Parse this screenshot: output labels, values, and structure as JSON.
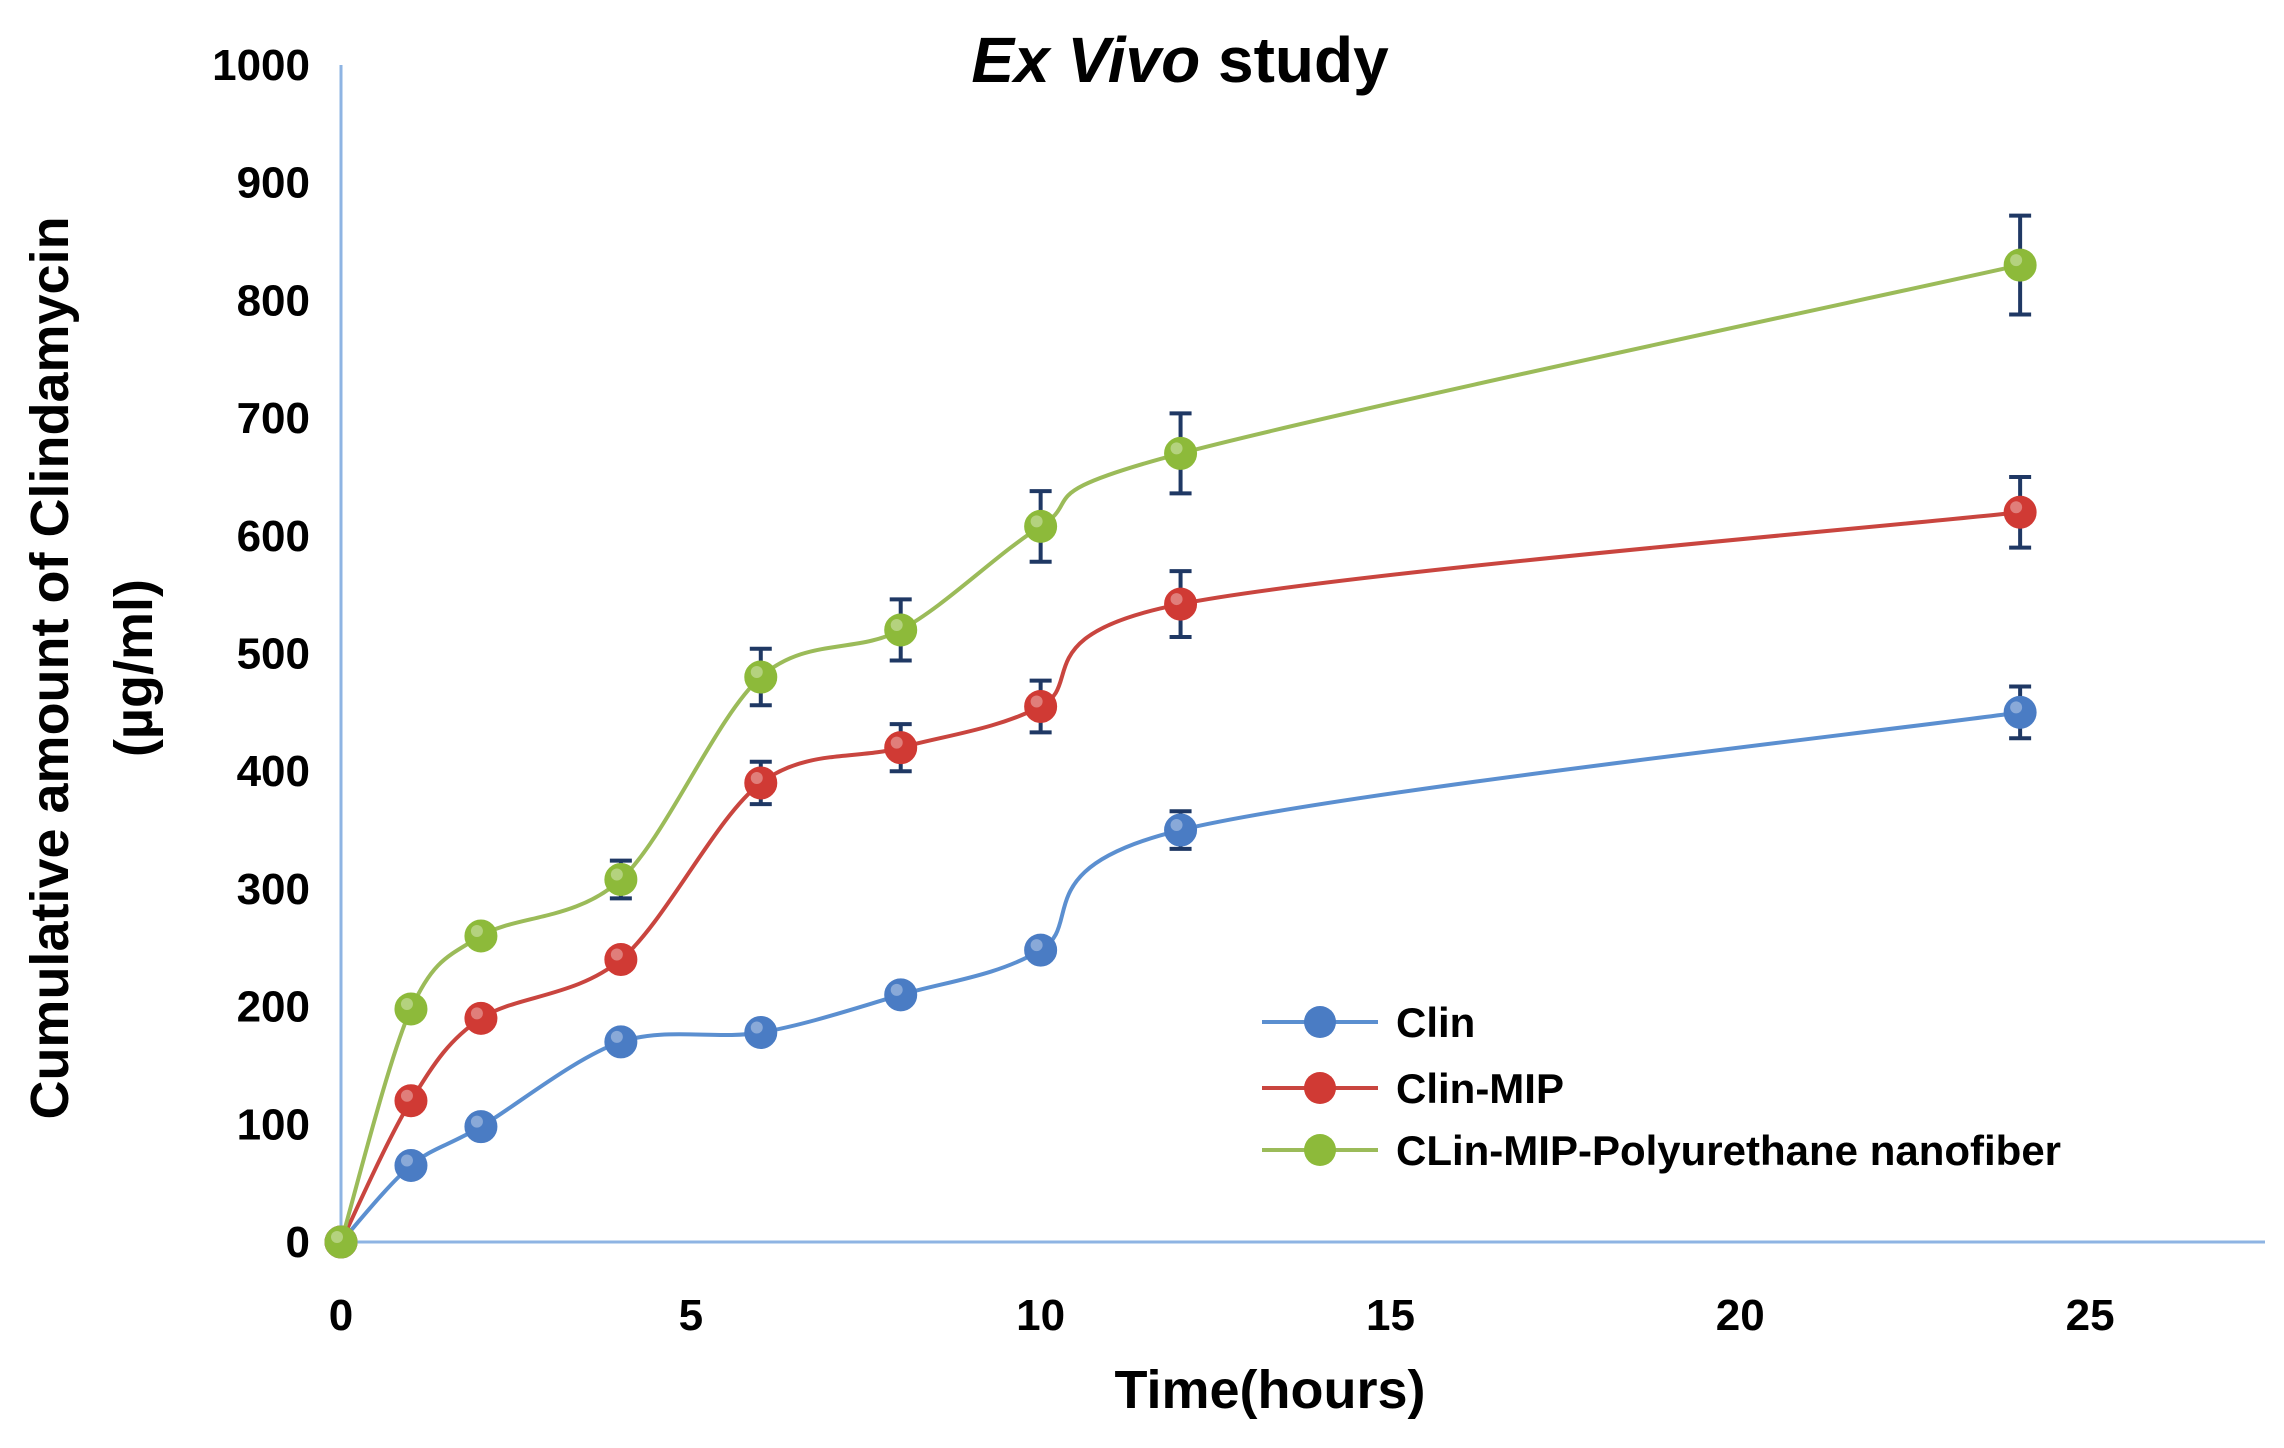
{
  "chart_data": {
    "type": "line",
    "title_italic": "Ex Vivo",
    "title_rest": " study",
    "xlabel": "Time(hours)",
    "ylabel_line1": "Cumulative amount of Clindamycin",
    "ylabel_line2": "(µg/ml)",
    "xlim": [
      0,
      27.5
    ],
    "ylim": [
      0,
      1000
    ],
    "x_ticks": [
      "0",
      "5",
      "10",
      "15",
      "20",
      "25"
    ],
    "y_ticks": [
      "0",
      "100",
      "200",
      "300",
      "400",
      "500",
      "600",
      "700",
      "800",
      "900",
      "1000"
    ],
    "x": [
      0,
      1,
      2,
      4,
      6,
      8,
      10,
      12,
      24
    ],
    "series": [
      {
        "name": "Clin",
        "color": "#4A7CC4",
        "line_color": "#5B8FD0",
        "values": [
          0,
          65,
          98,
          170,
          178,
          210,
          248,
          350,
          450
        ],
        "errors": [
          0,
          0,
          0,
          0,
          0,
          0,
          0,
          16,
          22
        ]
      },
      {
        "name": "Clin-MIP",
        "color": "#D03A34",
        "line_color": "#C9453F",
        "values": [
          0,
          120,
          190,
          240,
          390,
          420,
          455,
          542,
          620
        ],
        "errors": [
          0,
          0,
          0,
          0,
          18,
          20,
          22,
          28,
          30
        ]
      },
      {
        "name": "CLin-MIP-Polyurethane nanofiber",
        "color": "#8DBA3A",
        "line_color": "#9BBB59",
        "values": [
          0,
          198,
          260,
          308,
          480,
          520,
          608,
          670,
          830
        ],
        "errors": [
          0,
          0,
          0,
          16,
          24,
          26,
          30,
          34,
          42
        ]
      }
    ],
    "legend_position": "center-right",
    "error_bar_color": "#1F3864",
    "axis_color": "#8EB4E3"
  }
}
